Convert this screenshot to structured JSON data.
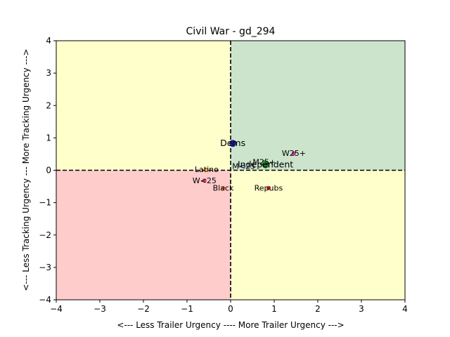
{
  "chart_data": {
    "type": "scatter",
    "title": "Civil War - gd_294",
    "xlabel": "<--- Less Trailer Urgency ---- More Trailer Urgency --->",
    "ylabel": "<--- Less Tracking Urgency --- More Tracking Urgency --->",
    "xlim": [
      -4,
      4
    ],
    "ylim": [
      -4,
      4
    ],
    "xticks": [
      "−4",
      "−3",
      "−2",
      "−1",
      "0",
      "1",
      "2",
      "3",
      "4"
    ],
    "yticks": [
      "−4",
      "−3",
      "−2",
      "−1",
      "0",
      "1",
      "2",
      "3",
      "4"
    ],
    "grid": false,
    "quadrants": [
      {
        "quadrant": "top-left",
        "color": "#ffffcc"
      },
      {
        "quadrant": "top-right",
        "color": "#cde4cc"
      },
      {
        "quadrant": "bottom-left",
        "color": "#ffcccc"
      },
      {
        "quadrant": "bottom-right",
        "color": "#ffffcc"
      }
    ],
    "reference_lines": {
      "x": 0,
      "y": 0,
      "style": "dashed",
      "color": "#000000"
    },
    "points": [
      {
        "label": "Dems",
        "x": 0.05,
        "y": 0.83,
        "color": "#1f1f9f",
        "large": true
      },
      {
        "label": "Independent",
        "x": 0.8,
        "y": 0.17,
        "color": "#2a7a2a",
        "large": true
      },
      {
        "label": "Repubs",
        "x": 0.87,
        "y": -0.55,
        "color": "#e03030",
        "large": false
      },
      {
        "label": "W25+",
        "x": 1.45,
        "y": 0.52,
        "color": "#cc3399",
        "large": false
      },
      {
        "label": "M25+",
        "x": 0.77,
        "y": 0.25,
        "color": "#3a9a3a",
        "large": false
      },
      {
        "label": "Latino",
        "x": -0.55,
        "y": 0.02,
        "color": "#f0a040",
        "large": false
      },
      {
        "label": "W<25",
        "x": -0.6,
        "y": -0.32,
        "color": "#e84080",
        "large": false
      },
      {
        "label": "Black",
        "x": -0.17,
        "y": -0.55,
        "color": "#f07030",
        "large": false
      },
      {
        "label": "M<25",
        "x": 0.3,
        "y": 0.12,
        "color": "#90c0e0",
        "large": false
      }
    ]
  }
}
